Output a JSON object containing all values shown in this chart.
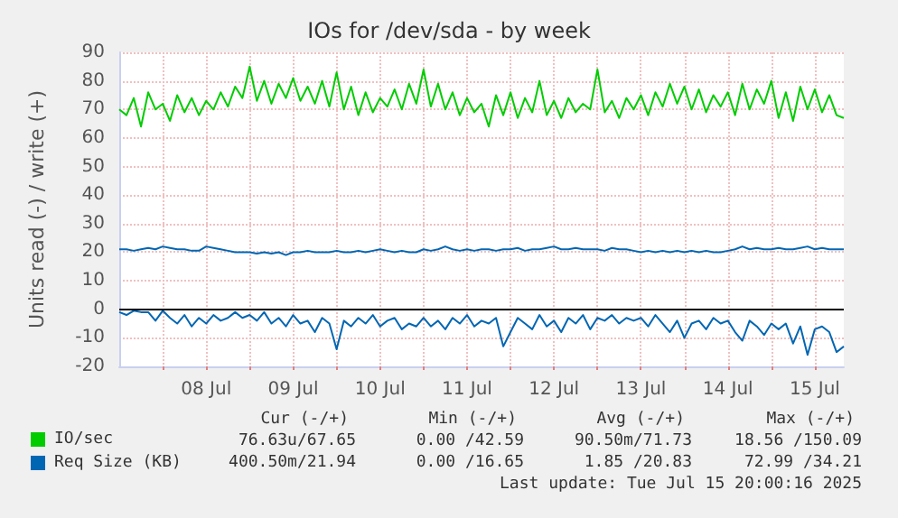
{
  "chart_data": {
    "type": "line",
    "title": "IOs for /dev/sda - by week",
    "ylabel": "Units read (-) / write (+)",
    "x": [
      "2025-07-07T12:00",
      "2025-07-07T14:00",
      "2025-07-07T16:00",
      "2025-07-07T18:00",
      "2025-07-07T20:00",
      "2025-07-07T22:00",
      "2025-07-08T00:00",
      "2025-07-08T02:00",
      "2025-07-08T04:00",
      "2025-07-08T06:00",
      "2025-07-08T08:00",
      "2025-07-08T10:00",
      "2025-07-08T12:00",
      "2025-07-08T14:00",
      "2025-07-08T16:00",
      "2025-07-08T18:00",
      "2025-07-08T20:00",
      "2025-07-08T22:00",
      "2025-07-09T00:00",
      "2025-07-09T02:00",
      "2025-07-09T04:00",
      "2025-07-09T06:00",
      "2025-07-09T08:00",
      "2025-07-09T10:00",
      "2025-07-09T12:00",
      "2025-07-09T14:00",
      "2025-07-09T16:00",
      "2025-07-09T18:00",
      "2025-07-09T20:00",
      "2025-07-09T22:00",
      "2025-07-10T00:00",
      "2025-07-10T02:00",
      "2025-07-10T04:00",
      "2025-07-10T06:00",
      "2025-07-10T08:00",
      "2025-07-10T10:00",
      "2025-07-10T12:00",
      "2025-07-10T14:00",
      "2025-07-10T16:00",
      "2025-07-10T18:00",
      "2025-07-10T20:00",
      "2025-07-10T22:00",
      "2025-07-11T00:00",
      "2025-07-11T02:00",
      "2025-07-11T04:00",
      "2025-07-11T06:00",
      "2025-07-11T08:00",
      "2025-07-11T10:00",
      "2025-07-11T12:00",
      "2025-07-11T14:00",
      "2025-07-11T16:00",
      "2025-07-11T18:00",
      "2025-07-11T20:00",
      "2025-07-11T22:00",
      "2025-07-12T00:00",
      "2025-07-12T02:00",
      "2025-07-12T04:00",
      "2025-07-12T06:00",
      "2025-07-12T08:00",
      "2025-07-12T10:00",
      "2025-07-12T12:00",
      "2025-07-12T14:00",
      "2025-07-12T16:00",
      "2025-07-12T18:00",
      "2025-07-12T20:00",
      "2025-07-12T22:00",
      "2025-07-13T00:00",
      "2025-07-13T02:00",
      "2025-07-13T04:00",
      "2025-07-13T06:00",
      "2025-07-13T08:00",
      "2025-07-13T10:00",
      "2025-07-13T12:00",
      "2025-07-13T14:00",
      "2025-07-13T16:00",
      "2025-07-13T18:00",
      "2025-07-13T20:00",
      "2025-07-13T22:00",
      "2025-07-14T00:00",
      "2025-07-14T02:00",
      "2025-07-14T04:00",
      "2025-07-14T06:00",
      "2025-07-14T08:00",
      "2025-07-14T10:00",
      "2025-07-14T12:00",
      "2025-07-14T14:00",
      "2025-07-14T16:00",
      "2025-07-14T18:00",
      "2025-07-14T20:00",
      "2025-07-14T22:00",
      "2025-07-15T00:00",
      "2025-07-15T02:00",
      "2025-07-15T04:00",
      "2025-07-15T06:00",
      "2025-07-15T08:00",
      "2025-07-15T10:00",
      "2025-07-15T12:00",
      "2025-07-15T14:00",
      "2025-07-15T16:00",
      "2025-07-15T18:00",
      "2025-07-15T20:00"
    ],
    "series": [
      {
        "name": "IO/sec",
        "color": "#00cc00",
        "values": [
          70,
          68,
          74,
          64,
          76,
          70,
          72,
          66,
          75,
          69,
          74,
          68,
          73,
          70,
          76,
          71,
          78,
          74,
          85,
          73,
          80,
          72,
          79,
          74,
          81,
          73,
          78,
          72,
          80,
          71,
          83,
          70,
          78,
          68,
          76,
          69,
          74,
          71,
          77,
          70,
          79,
          72,
          84,
          71,
          79,
          70,
          76,
          68,
          74,
          69,
          72,
          64,
          75,
          68,
          76,
          67,
          74,
          69,
          80,
          68,
          73,
          67,
          74,
          69,
          72,
          70,
          84,
          69,
          73,
          67,
          74,
          70,
          75,
          68,
          76,
          71,
          79,
          72,
          78,
          70,
          77,
          69,
          75,
          71,
          76,
          68,
          79,
          70,
          77,
          72,
          80,
          67,
          76,
          66,
          78,
          70,
          77,
          69,
          75,
          68,
          67
        ]
      },
      {
        "name": "Req Size (KB)",
        "color": "#0066b3",
        "values": [
          21,
          21,
          20.5,
          21,
          21.5,
          21,
          22,
          21.5,
          21,
          21,
          20.5,
          20.5,
          22,
          21.5,
          21,
          20.5,
          20,
          20,
          20,
          19.5,
          20,
          19.5,
          20,
          19,
          20,
          20,
          20.5,
          20,
          20,
          20,
          20.5,
          20,
          20,
          20.5,
          20,
          20.5,
          21,
          20.5,
          20,
          20.5,
          20,
          20,
          21,
          20.5,
          21,
          22,
          21,
          20.5,
          21,
          20.5,
          21,
          21,
          20.5,
          21,
          21,
          21.5,
          20.5,
          21,
          21,
          21.5,
          22,
          21,
          21,
          21.5,
          21,
          21,
          21,
          20.5,
          21.5,
          21,
          21,
          20.5,
          20,
          20.5,
          20,
          20.5,
          20,
          20.5,
          20,
          20.5,
          20,
          20.5,
          20,
          20,
          20.5,
          21,
          22,
          21,
          21.5,
          21,
          21,
          21.5,
          21,
          21,
          21.5,
          22,
          21,
          21.5,
          21,
          21,
          21
        ]
      },
      {
        "color": "#0066b3",
        "values": [
          -1,
          -2,
          -0.5,
          -1,
          -1,
          -4,
          -0.5,
          -3,
          -5,
          -2,
          -6,
          -3,
          -5,
          -2,
          -4,
          -3,
          -1,
          -3,
          -2,
          -4,
          -1,
          -5,
          -3,
          -6,
          -2,
          -5,
          -4,
          -8,
          -3,
          -5,
          -14,
          -4,
          -6,
          -3,
          -5,
          -2,
          -6,
          -4,
          -3,
          -7,
          -5,
          -6,
          -3,
          -6,
          -4,
          -7,
          -3,
          -5,
          -2,
          -6,
          -4,
          -5,
          -3,
          -13,
          -8,
          -3,
          -5,
          -7,
          -2,
          -6,
          -4,
          -8,
          -3,
          -5,
          -2,
          -7,
          -3,
          -4,
          -2,
          -5,
          -3,
          -4,
          -3,
          -6,
          -2,
          -5,
          -8,
          -4,
          -10,
          -5,
          -4,
          -7,
          -3,
          -5,
          -4,
          -8,
          -11,
          -4,
          -6,
          -9,
          -5,
          -7,
          -5,
          -12,
          -6,
          -16,
          -7,
          -6,
          -8,
          -15,
          -13
        ]
      }
    ],
    "xlim": [
      "2025-07-07T12:00",
      "2025-07-15T20:00"
    ],
    "xticks": [
      {
        "value": "2025-07-08T00:00",
        "label": null
      },
      {
        "value": "2025-07-08T12:00",
        "label": "08 Jul"
      },
      {
        "value": "2025-07-09T00:00",
        "label": null
      },
      {
        "value": "2025-07-09T12:00",
        "label": "09 Jul"
      },
      {
        "value": "2025-07-10T00:00",
        "label": null
      },
      {
        "value": "2025-07-10T12:00",
        "label": "10 Jul"
      },
      {
        "value": "2025-07-11T00:00",
        "label": null
      },
      {
        "value": "2025-07-11T12:00",
        "label": "11 Jul"
      },
      {
        "value": "2025-07-12T00:00",
        "label": null
      },
      {
        "value": "2025-07-12T12:00",
        "label": "12 Jul"
      },
      {
        "value": "2025-07-13T00:00",
        "label": null
      },
      {
        "value": "2025-07-13T12:00",
        "label": "13 Jul"
      },
      {
        "value": "2025-07-14T00:00",
        "label": null
      },
      {
        "value": "2025-07-14T12:00",
        "label": "14 Jul"
      },
      {
        "value": "2025-07-15T00:00",
        "label": null
      },
      {
        "value": "2025-07-15T12:00",
        "label": "15 Jul"
      }
    ],
    "ylim": [
      -20,
      90
    ],
    "yticks": [
      -20,
      -10,
      0,
      10,
      20,
      30,
      40,
      50,
      60,
      70,
      80,
      90
    ],
    "ref_lines": [
      {
        "axis": "y",
        "value": 0,
        "color": "#000000"
      }
    ],
    "grid": true,
    "legend": "bottom left",
    "marker": "none",
    "line_style": "solid",
    "annotations": [
      "Cur (-/+)",
      "Min (-/+)",
      "Avg (-/+)",
      "Max (-/+)",
      "76.63u/67.65",
      "0.00 /42.59",
      "90.50m/71.73",
      "18.56 /150.09",
      "400.50m/21.94",
      "0.00 /16.65",
      "1.85 /20.83",
      "72.99 /34.21",
      "Last update: Tue Jul 15 20:00:16 2025"
    ]
  }
}
